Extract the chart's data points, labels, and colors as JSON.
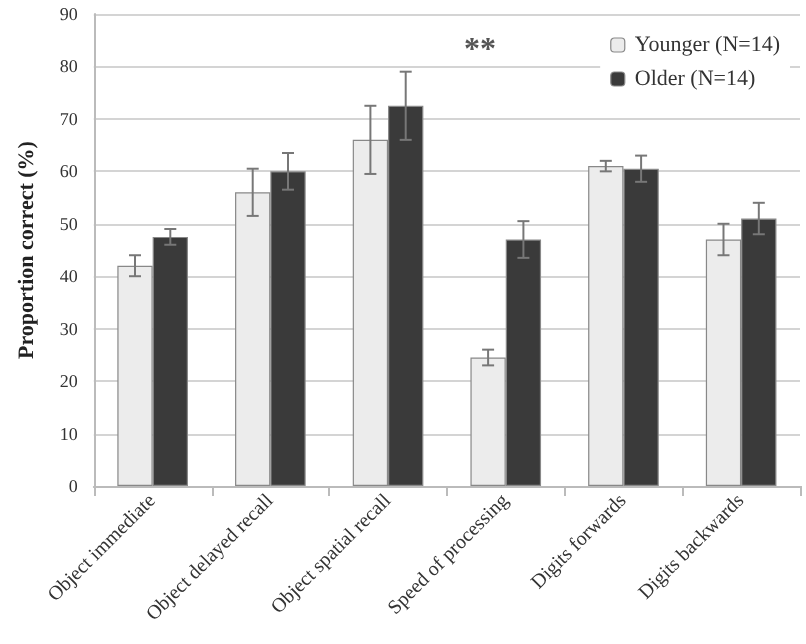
{
  "chart_data": {
    "type": "bar",
    "ylabel": "Proportion correct (%)",
    "categories": [
      "Object immediate",
      "Object delayed recall",
      "Object spatial recall",
      "Speed of processing",
      "Digits forwards",
      "Digits backwards"
    ],
    "series": [
      {
        "name": "Younger (N=14)",
        "color": "#ececec",
        "values": [
          42,
          56,
          66,
          24.5,
          61,
          47
        ],
        "errors": [
          2,
          4.5,
          6.5,
          1.5,
          1,
          3
        ]
      },
      {
        "name": "Older (N=14)",
        "color": "#3a3a3a",
        "values": [
          47.5,
          60,
          72.5,
          47,
          60.5,
          51
        ],
        "errors": [
          1.5,
          3.5,
          6.5,
          3.5,
          2.5,
          3
        ]
      }
    ],
    "ylim": [
      0,
      90
    ],
    "yticks": [
      0,
      10,
      20,
      30,
      40,
      50,
      60,
      70,
      80,
      90
    ],
    "grid": "y",
    "legend": "top right",
    "annotations": [
      "**"
    ]
  }
}
